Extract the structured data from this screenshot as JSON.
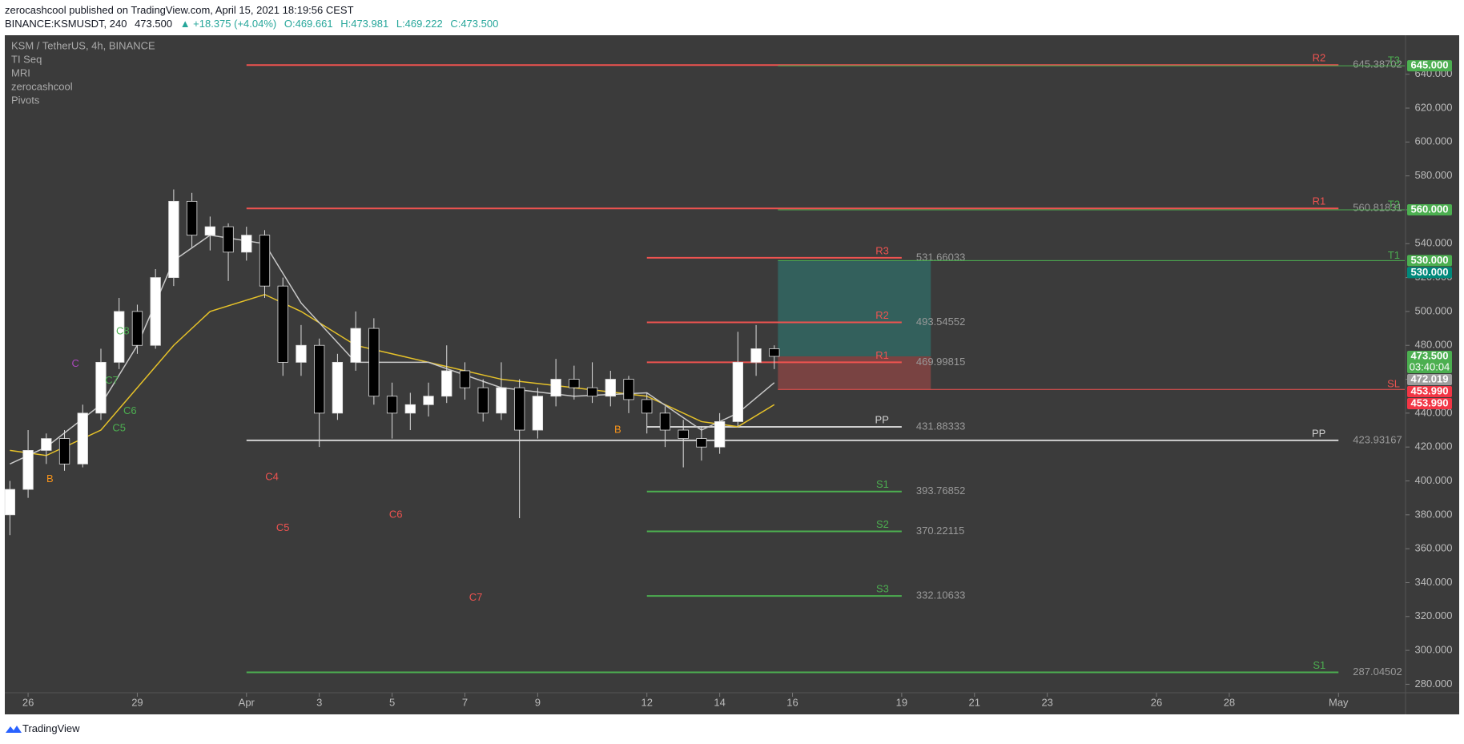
{
  "header": {
    "line1": "zerocashcool published on TradingView.com, April 15, 2021 18:19:56 CEST",
    "symbol": "BINANCE:KSMUSDT, 240",
    "price": "473.500",
    "change": "▲ +18.375 (+4.04%)",
    "open": "O:469.661",
    "high": "H:473.981",
    "low": "L:469.222",
    "close": "C:473.500"
  },
  "legend": [
    "KSM / TetherUS, 4h, BINANCE",
    "TI Seq",
    "MRI",
    "zerocashcool",
    "Pivots"
  ],
  "footer": "TradingView",
  "chart_data": {
    "type": "candlestick",
    "x": [
      -0.5,
      0,
      0.5,
      1,
      1.5,
      2,
      2.5,
      3,
      3.5,
      4,
      4.5,
      5,
      5.5,
      6,
      6.5,
      7,
      7.5,
      8,
      8.5,
      9,
      9.5,
      10,
      10.5,
      11,
      11.5,
      12,
      12.5,
      13,
      13.5,
      14,
      14.5,
      15,
      15.5,
      16,
      16.5,
      17,
      17.5,
      18,
      18.5,
      19,
      19.5,
      20,
      20.5
    ],
    "open": [
      380,
      395,
      418,
      425,
      410,
      440,
      470,
      500,
      480,
      520,
      565,
      545,
      550,
      535,
      545,
      515,
      470,
      480,
      440,
      470,
      490,
      450,
      440,
      445,
      450,
      465,
      455,
      440,
      455,
      430,
      450,
      460,
      455,
      450,
      460,
      448,
      440,
      430,
      425,
      420,
      435,
      470,
      478
    ],
    "high": [
      400,
      430,
      428,
      430,
      445,
      478,
      508,
      504,
      525,
      572,
      570,
      556,
      552,
      550,
      548,
      520,
      492,
      484,
      475,
      500,
      496,
      458,
      452,
      458,
      480,
      470,
      460,
      470,
      460,
      455,
      472,
      468,
      470,
      465,
      462,
      452,
      444,
      436,
      432,
      440,
      488,
      492,
      480
    ],
    "low": [
      368,
      390,
      410,
      406,
      408,
      436,
      466,
      475,
      478,
      515,
      538,
      536,
      518,
      530,
      508,
      462,
      462,
      420,
      436,
      465,
      445,
      425,
      430,
      438,
      446,
      448,
      435,
      436,
      378,
      425,
      444,
      448,
      446,
      444,
      440,
      428,
      420,
      408,
      412,
      416,
      432,
      462,
      466
    ],
    "close": [
      395,
      418,
      425,
      410,
      440,
      470,
      500,
      480,
      520,
      565,
      545,
      550,
      535,
      545,
      515,
      470,
      480,
      440,
      470,
      490,
      450,
      440,
      445,
      450,
      465,
      455,
      440,
      455,
      430,
      450,
      460,
      455,
      450,
      460,
      448,
      440,
      430,
      425,
      420,
      435,
      470,
      478,
      473.5
    ],
    "up_color": "#ffffff",
    "down_color": "#000000",
    "overlays": [
      {
        "color": "#e6c229",
        "x": [
          -0.5,
          0.5,
          2,
          3,
          4,
          5,
          6.5,
          7.5,
          9,
          11,
          13,
          15,
          17,
          18.5,
          19.5,
          20.5
        ],
        "values": [
          418,
          415,
          430,
          455,
          480,
          500,
          510,
          500,
          480,
          470,
          460,
          455,
          450,
          435,
          432,
          445
        ]
      },
      {
        "color": "#c8c8c8",
        "x": [
          -0.5,
          0.5,
          2,
          3,
          4,
          5,
          6.5,
          7.5,
          9,
          11,
          13,
          15,
          17,
          18.5,
          19.5,
          20.5
        ],
        "values": [
          410,
          420,
          445,
          480,
          530,
          545,
          540,
          505,
          470,
          470,
          455,
          450,
          452,
          430,
          440,
          458
        ]
      }
    ],
    "levels": [
      {
        "name": "R2",
        "value": 645.38702,
        "color": "#ef5350",
        "from": 6,
        "to": 36
      },
      {
        "name": "R1",
        "value": 560.81831,
        "color": "#ef5350",
        "from": 6,
        "to": 36
      },
      {
        "name": "PP",
        "value": 423.93167,
        "color": "#d0d0d0",
        "from": 6,
        "to": 36
      },
      {
        "name": "S1",
        "value": 287.04502,
        "color": "#4caf50",
        "from": 6,
        "to": 36
      },
      {
        "name": "R3",
        "value": 531.66033,
        "color": "#ef5350",
        "from": 17,
        "to": 24
      },
      {
        "name": "R2",
        "value": 493.54552,
        "color": "#ef5350",
        "from": 17,
        "to": 24
      },
      {
        "name": "R1",
        "value": 469.99815,
        "color": "#ef5350",
        "from": 17,
        "to": 24
      },
      {
        "name": "PP",
        "value": 431.88333,
        "color": "#d0d0d0",
        "from": 17,
        "to": 24
      },
      {
        "name": "S1",
        "value": 393.76852,
        "color": "#4caf50",
        "from": 17,
        "to": 24
      },
      {
        "name": "S2",
        "value": 370.22115,
        "color": "#4caf50",
        "from": 17,
        "to": 24
      },
      {
        "name": "S3",
        "value": 332.10633,
        "color": "#4caf50",
        "from": 17,
        "to": 24
      }
    ],
    "targets": [
      {
        "name": "T3",
        "value": 645,
        "color": "#4caf50"
      },
      {
        "name": "T2",
        "value": 560,
        "color": "#4caf50"
      },
      {
        "name": "T1",
        "value": 530,
        "color": "#4caf50"
      },
      {
        "name": "SL",
        "value": 453.99,
        "color": "#ef5350"
      }
    ],
    "position": {
      "from": 20.6,
      "to": 24.8,
      "entry": 473.5,
      "target": 530,
      "stop": 453.99
    },
    "annotations": [
      {
        "text": "B",
        "x": 0.6,
        "y": 401,
        "color": "#f7931a"
      },
      {
        "text": "C",
        "x": 1.3,
        "y": 469,
        "color": "#ab47bc"
      },
      {
        "text": "C8",
        "x": 2.6,
        "y": 488,
        "color": "#4caf50"
      },
      {
        "text": "C7",
        "x": 2.3,
        "y": 459,
        "color": "#4caf50"
      },
      {
        "text": "C6",
        "x": 2.8,
        "y": 441,
        "color": "#4caf50"
      },
      {
        "text": "C5",
        "x": 2.5,
        "y": 431,
        "color": "#4caf50"
      },
      {
        "text": "C4",
        "x": 6.7,
        "y": 402,
        "color": "#ef5350"
      },
      {
        "text": "C5",
        "x": 7.0,
        "y": 372,
        "color": "#ef5350"
      },
      {
        "text": "C6",
        "x": 10.1,
        "y": 380,
        "color": "#ef5350"
      },
      {
        "text": "C7",
        "x": 12.3,
        "y": 331,
        "color": "#ef5350"
      },
      {
        "text": "B",
        "x": 16.2,
        "y": 430,
        "color": "#f7931a"
      }
    ],
    "price_labels": [
      {
        "value": 645,
        "label": "645.000",
        "color": "#4caf50"
      },
      {
        "value": 560,
        "label": "560.000",
        "color": "#4caf50"
      },
      {
        "value": 530,
        "label": "530.000",
        "color": "#4caf50"
      },
      {
        "value": 530,
        "label": "530.000",
        "color": "#00897b"
      },
      {
        "value": 473.5,
        "label": "473.500",
        "sublabel": "03:40:04",
        "color": "#4caf50"
      },
      {
        "value": 472.019,
        "label": "472.019",
        "color": "#9e9e9e"
      },
      {
        "value": 453.99,
        "label": "453.990",
        "color": "#f23645"
      },
      {
        "value": 453.99,
        "label": "453.990",
        "color": "#f23645"
      }
    ],
    "xlim": [
      -0.64,
      37.82
    ],
    "xticks": [
      {
        "value": 0,
        "label": "26"
      },
      {
        "value": 3,
        "label": "29"
      },
      {
        "value": 6,
        "label": "Apr"
      },
      {
        "value": 8,
        "label": "3"
      },
      {
        "value": 10,
        "label": "5"
      },
      {
        "value": 12,
        "label": "7"
      },
      {
        "value": 14,
        "label": "9"
      },
      {
        "value": 17,
        "label": "12"
      },
      {
        "value": 19,
        "label": "14"
      },
      {
        "value": 21,
        "label": "16"
      },
      {
        "value": 24,
        "label": "19"
      },
      {
        "value": 26,
        "label": "21"
      },
      {
        "value": 28,
        "label": "23"
      },
      {
        "value": 31,
        "label": "26"
      },
      {
        "value": 33,
        "label": "28"
      },
      {
        "value": 36,
        "label": "May"
      }
    ],
    "ylim": [
      275,
      663
    ],
    "yticks": [
      {
        "value": 280,
        "label": "280.000"
      },
      {
        "value": 300,
        "label": "300.000"
      },
      {
        "value": 320,
        "label": "320.000"
      },
      {
        "value": 340,
        "label": "340.000"
      },
      {
        "value": 360,
        "label": "360.000"
      },
      {
        "value": 380,
        "label": "380.000"
      },
      {
        "value": 400,
        "label": "400.000"
      },
      {
        "value": 420,
        "label": "420.000"
      },
      {
        "value": 440,
        "label": "440.000"
      },
      {
        "value": 460,
        "label": "460.000"
      },
      {
        "value": 480,
        "label": "480.000"
      },
      {
        "value": 500,
        "label": "500.000"
      },
      {
        "value": 520,
        "label": "520.000"
      },
      {
        "value": 540,
        "label": "540.000"
      },
      {
        "value": 560,
        "label": "560.000"
      },
      {
        "value": 580,
        "label": "580.000"
      },
      {
        "value": 600,
        "label": "600.000"
      },
      {
        "value": 620,
        "label": "620.000"
      },
      {
        "value": 640,
        "label": "640.000"
      }
    ],
    "grid": false
  }
}
